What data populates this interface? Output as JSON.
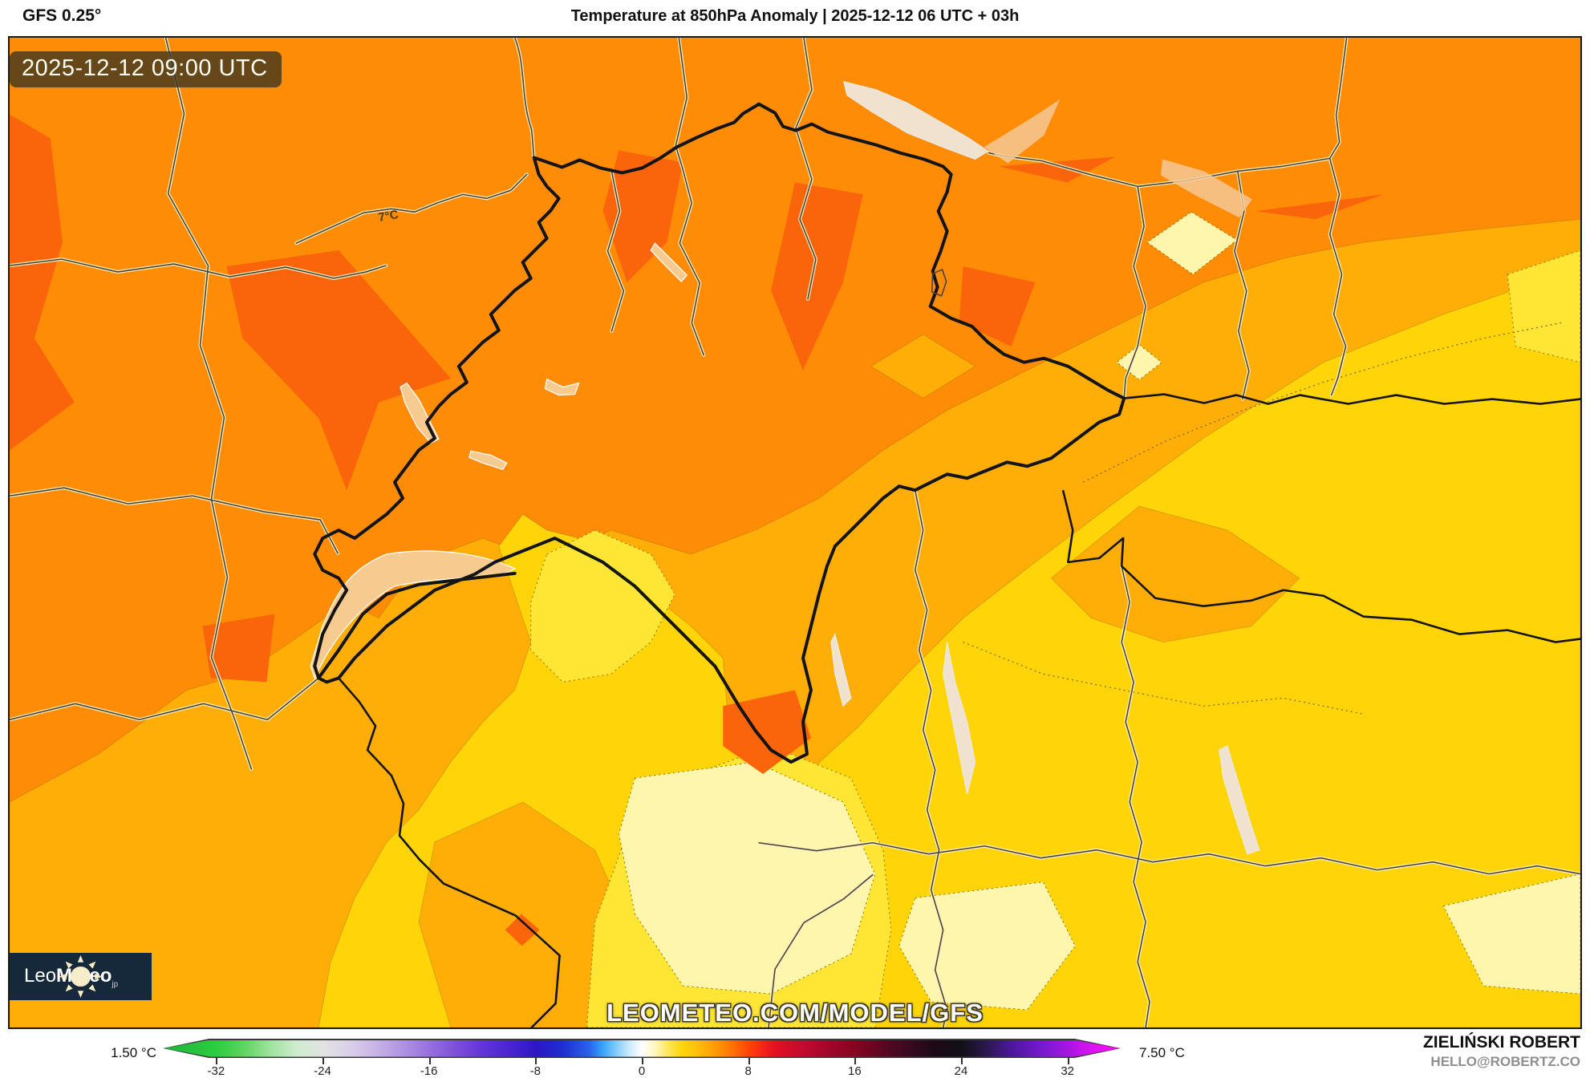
{
  "header": {
    "model_label": "GFS 0.25°",
    "title": "Temperature at 850hPa Anomaly | 2025-12-12 06 UTC + 03h"
  },
  "map": {
    "timestamp": "2025-12-12 09:00 UTC",
    "contour_label": "7°C",
    "watermark": "LEOMETEO.COM/MODEL/GFS",
    "logo": {
      "brand_light": "Leo",
      "brand_bold": "Meteo",
      "suffix": "jp"
    }
  },
  "colorbar": {
    "min_label": "1.50 °C",
    "max_label": "7.50 °C",
    "unit": "°C",
    "range": [
      -36,
      36
    ],
    "ticks": [
      -32,
      -24,
      -16,
      -8,
      0,
      8,
      16,
      24,
      32
    ],
    "stops": [
      [
        -36,
        "#1fb53a"
      ],
      [
        -32,
        "#2ecc40"
      ],
      [
        -30,
        "#5fd45f"
      ],
      [
        -28,
        "#9fe39f"
      ],
      [
        -26,
        "#cfeccf"
      ],
      [
        -24,
        "#e2e2e2"
      ],
      [
        -22,
        "#d9cfe9"
      ],
      [
        -20,
        "#c6b3e6"
      ],
      [
        -18,
        "#af92e3"
      ],
      [
        -16,
        "#9670de"
      ],
      [
        -14,
        "#7d4fd8"
      ],
      [
        -12,
        "#6134d6"
      ],
      [
        -10,
        "#4a25cf"
      ],
      [
        -8,
        "#2d17c4"
      ],
      [
        -6,
        "#1f2ed0"
      ],
      [
        -4,
        "#2a62e8"
      ],
      [
        -3,
        "#39a1f7"
      ],
      [
        -2,
        "#7fcbfb"
      ],
      [
        -1,
        "#c9e9fd"
      ],
      [
        0,
        "#ffffff"
      ],
      [
        1,
        "#fff6bb"
      ],
      [
        2,
        "#ffe558"
      ],
      [
        3,
        "#ffd60a"
      ],
      [
        4,
        "#ffc30a"
      ],
      [
        5,
        "#ffa807"
      ],
      [
        6,
        "#ff8c06"
      ],
      [
        7,
        "#ff6a05"
      ],
      [
        8,
        "#ff4505"
      ],
      [
        9,
        "#f72516"
      ],
      [
        10,
        "#e41020"
      ],
      [
        12,
        "#c40a2e"
      ],
      [
        14,
        "#a2072a"
      ],
      [
        16,
        "#850522"
      ],
      [
        18,
        "#5e0722"
      ],
      [
        20,
        "#3a0a20"
      ],
      [
        22,
        "#1d0a16"
      ],
      [
        24,
        "#121016"
      ],
      [
        26,
        "#2b1850"
      ],
      [
        28,
        "#4f17a0"
      ],
      [
        30,
        "#7519cc"
      ],
      [
        32,
        "#a117e0"
      ],
      [
        33,
        "#c215ea"
      ],
      [
        34,
        "#dc13f2"
      ],
      [
        36,
        "#ff0af8"
      ]
    ]
  },
  "credits": {
    "author": "ZIELIŃSKI ROBERT",
    "contact": "HELLO@ROBERTZ.CO"
  },
  "map_colors": {
    "orange": "#ff8c06",
    "orange_dark": "#fa640a",
    "amber": "#ffae08",
    "yellow": "#ffd50a",
    "bright_yellow": "#ffe534",
    "pale_yellow": "#fff6ae"
  }
}
